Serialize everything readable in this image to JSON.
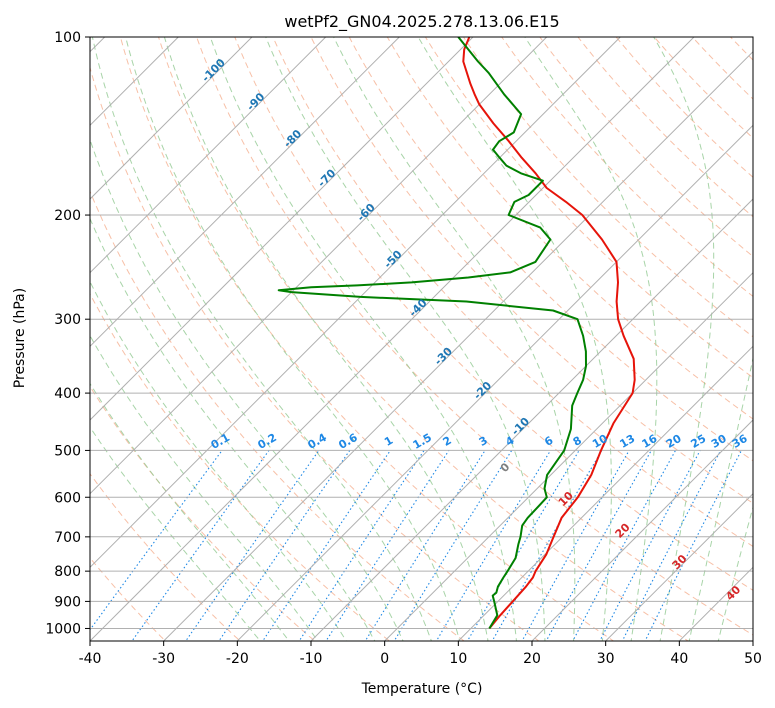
{
  "chart_data": {
    "type": "line",
    "title": "wetPf2_GN04.2025.278.13.06.E15",
    "xlabel": "Temperature (°C)",
    "ylabel": "Pressure (hPa)",
    "xlim": [
      -40,
      50
    ],
    "ylim": [
      1050,
      100
    ],
    "yscale": "log",
    "skew": "skew-T log-P",
    "grid": true,
    "x_ticks": [
      -40,
      -30,
      -20,
      -10,
      0,
      10,
      20,
      30,
      40,
      50
    ],
    "y_ticks": [
      100,
      200,
      300,
      400,
      500,
      600,
      700,
      800,
      900,
      1000
    ],
    "series": [
      {
        "color": "#e6140a",
        "points": [
          [
            1000,
            12.5
          ],
          [
            950,
            12.2
          ],
          [
            900,
            12.0
          ],
          [
            850,
            11.8
          ],
          [
            820,
            11.5
          ],
          [
            800,
            11.0
          ],
          [
            750,
            10.2
          ],
          [
            700,
            8.8
          ],
          [
            650,
            7.3
          ],
          [
            600,
            6.7
          ],
          [
            550,
            5.5
          ],
          [
            500,
            3.5
          ],
          [
            450,
            1.5
          ],
          [
            400,
            0.0
          ],
          [
            380,
            -1.5
          ],
          [
            350,
            -4.5
          ],
          [
            320,
            -9.0
          ],
          [
            300,
            -12.0
          ],
          [
            280,
            -14.6
          ],
          [
            260,
            -17.0
          ],
          [
            240,
            -20.0
          ],
          [
            220,
            -25.0
          ],
          [
            200,
            -31.0
          ],
          [
            190,
            -35.0
          ],
          [
            180,
            -39.5
          ],
          [
            170,
            -43.0
          ],
          [
            160,
            -47.0
          ],
          [
            150,
            -51.0
          ],
          [
            140,
            -55.5
          ],
          [
            130,
            -60.0
          ],
          [
            125,
            -62.0
          ],
          [
            120,
            -64.0
          ],
          [
            110,
            -68.0
          ],
          [
            105,
            -69.5
          ],
          [
            100,
            -70.5
          ]
        ]
      },
      {
        "color": "#008000",
        "points": [
          [
            1000,
            12.5
          ],
          [
            950,
            11.8
          ],
          [
            900,
            9.5
          ],
          [
            880,
            8.5
          ],
          [
            870,
            8.6
          ],
          [
            850,
            8.0
          ],
          [
            820,
            7.5
          ],
          [
            800,
            7.2
          ],
          [
            760,
            6.5
          ],
          [
            720,
            5.0
          ],
          [
            700,
            4.3
          ],
          [
            670,
            3.0
          ],
          [
            650,
            2.7
          ],
          [
            620,
            2.6
          ],
          [
            600,
            2.5
          ],
          [
            580,
            1.0
          ],
          [
            550,
            -0.5
          ],
          [
            500,
            -1.5
          ],
          [
            460,
            -3.5
          ],
          [
            420,
            -6.5
          ],
          [
            400,
            -7.5
          ],
          [
            380,
            -8.5
          ],
          [
            360,
            -10.0
          ],
          [
            340,
            -12.0
          ],
          [
            320,
            -14.5
          ],
          [
            300,
            -17.5
          ],
          [
            290,
            -22.0
          ],
          [
            280,
            -35.0
          ],
          [
            275,
            -50.0
          ],
          [
            270,
            -60.0
          ],
          [
            268,
            -62.0
          ],
          [
            265,
            -58.0
          ],
          [
            263,
            -52.0
          ],
          [
            260,
            -45.0
          ],
          [
            255,
            -38.0
          ],
          [
            250,
            -33.0
          ],
          [
            240,
            -31.0
          ],
          [
            220,
            -32.0
          ],
          [
            210,
            -35.0
          ],
          [
            200,
            -41.0
          ],
          [
            190,
            -42.0
          ],
          [
            185,
            -41.0
          ],
          [
            175,
            -41.0
          ],
          [
            170,
            -45.0
          ],
          [
            165,
            -48.0
          ],
          [
            160,
            -50.0
          ],
          [
            155,
            -52.0
          ],
          [
            150,
            -52.3
          ],
          [
            145,
            -51.5
          ],
          [
            135,
            -53.0
          ],
          [
            125,
            -58.0
          ],
          [
            115,
            -63.0
          ],
          [
            110,
            -66.0
          ],
          [
            100,
            -72.0
          ]
        ]
      }
    ],
    "dry_adiabat_labels": [
      "-100",
      "-90",
      "-80",
      "-70",
      "-60",
      "-50",
      "-40",
      "-30",
      "-20",
      "-10"
    ],
    "moist_adiabat_labels": [
      "0",
      "10",
      "20",
      "30",
      "40"
    ],
    "mixing_ratio_labels": [
      "0.1",
      "0.2",
      "0.4",
      "0.6",
      "1",
      "1.5",
      "2",
      "3",
      "4",
      "6",
      "8",
      "10",
      "13",
      "16",
      "20",
      "25",
      "30",
      "36"
    ],
    "colors": {
      "temperature": "#e6140a",
      "dewpoint": "#008000",
      "isobar_isotherm_grid": "#b0b0b0",
      "dry_adiabat": "#f4a582",
      "moist_adiabat": "#92c992",
      "mixing_ratio": "#1e88e5",
      "dry_adiabat_label": "#1f77b4",
      "moist_adiabat_label": "#d62728"
    }
  }
}
